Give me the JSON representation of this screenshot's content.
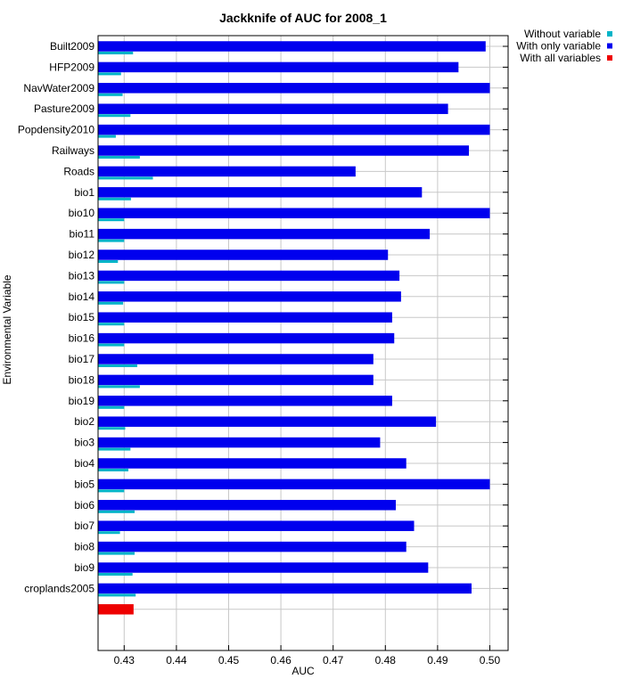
{
  "chart_data": {
    "type": "bar",
    "orientation": "horizontal",
    "title": "Jackknife of AUC for 2008_1",
    "xlabel": "AUC",
    "ylabel": "Environmental Variable",
    "xlim": [
      0.425,
      0.5035
    ],
    "xticks": [
      0.43,
      0.44,
      0.45,
      0.46,
      0.47,
      0.48,
      0.49,
      0.5
    ],
    "xtick_labels": [
      "0.43",
      "0.44",
      "0.45",
      "0.46",
      "0.47",
      "0.48",
      "0.49",
      "0.50"
    ],
    "grid": true,
    "legend_position": "outside-top-right",
    "categories": [
      "Built2009",
      "HFP2009",
      "NavWater2009",
      "Pasture2009",
      "Popdensity2010",
      "Railways",
      "Roads",
      "bio1",
      "bio10",
      "bio11",
      "bio12",
      "bio13",
      "bio14",
      "bio15",
      "bio16",
      "bio17",
      "bio18",
      "bio19",
      "bio2",
      "bio3",
      "bio4",
      "bio5",
      "bio6",
      "bio7",
      "bio8",
      "bio9",
      "croplands2005"
    ],
    "series": [
      {
        "name": "Without variable",
        "color": "#00b4c8",
        "values": [
          0.4317,
          0.4294,
          0.4297,
          0.4312,
          0.4284,
          0.433,
          0.4355,
          0.4313,
          0.43,
          0.43,
          0.4288,
          0.43,
          0.4298,
          0.43,
          0.43,
          0.4325,
          0.433,
          0.43,
          0.4302,
          0.4312,
          0.4308,
          0.43,
          0.432,
          0.4292,
          0.432,
          0.4316,
          0.4322
        ]
      },
      {
        "name": "With only variable",
        "color": "#0000ee",
        "values": [
          0.4992,
          0.494,
          0.5,
          0.492,
          0.5,
          0.496,
          0.4743,
          0.487,
          0.5,
          0.4885,
          0.4805,
          0.4827,
          0.483,
          0.4813,
          0.4817,
          0.4777,
          0.4777,
          0.4813,
          0.4897,
          0.479,
          0.484,
          0.5,
          0.482,
          0.4855,
          0.484,
          0.4882,
          0.4965
        ]
      },
      {
        "name": "With all variables",
        "color": "#ee0000",
        "value": 0.4318
      }
    ]
  }
}
